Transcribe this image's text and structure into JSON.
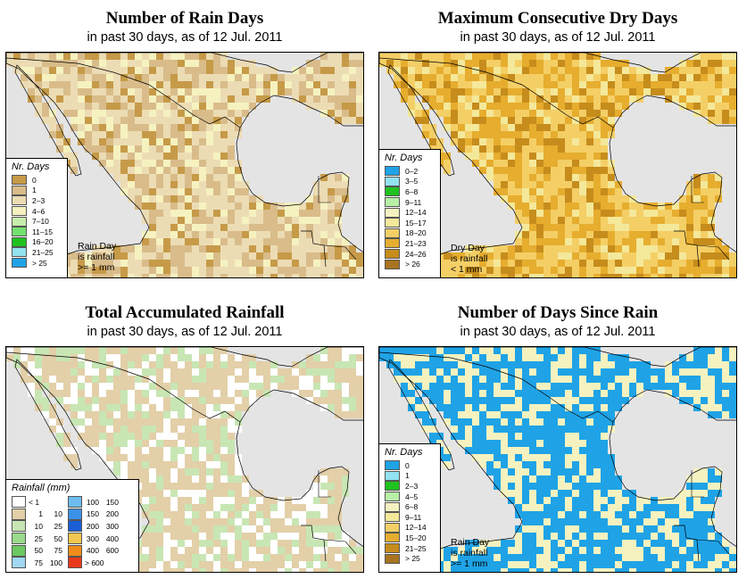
{
  "subtitle_prefix": "in past 30 days, as of",
  "date": "12 Jul. 2011",
  "panels": [
    {
      "id": "rain-days",
      "title": "Number of Rain Days",
      "subtitle": "in past 30 days, as of  12 Jul. 2011",
      "palette": {
        "0": "#c69a48",
        "1": "#d9bc8a",
        "2": "#ecdcb4",
        "3": "#f5f2c0",
        "4": "#c6eeaa",
        "5": "#74e070",
        "6": "#1fc21f",
        "7": "#93e2f0",
        "8": "#1fa3e6"
      },
      "legend": {
        "title": "Nr. Days",
        "items": [
          {
            "label": "0",
            "color": "#c69a48"
          },
          {
            "label": "1",
            "color": "#d9bc8a"
          },
          {
            "label": "2–3",
            "color": "#ecdcb4"
          },
          {
            "label": "4–6",
            "color": "#f5f2c0"
          },
          {
            "label": "7–10",
            "color": "#c6eeaa"
          },
          {
            "label": "11–15",
            "color": "#74e070"
          },
          {
            "label": "16–20",
            "color": "#1fc21f"
          },
          {
            "label": "21–25",
            "color": "#93e2f0"
          },
          {
            "label": "> 25",
            "color": "#1fa3e6"
          }
        ]
      },
      "note": [
        "Rain Day",
        "is rainfall",
        ">= 1 mm"
      ]
    },
    {
      "id": "dry-days",
      "title": "Maximum Consecutive Dry Days",
      "subtitle": "in past 30 days, as of  12 Jul. 2011",
      "palette": {
        "0": "#1fa3e6",
        "1": "#93e2f0",
        "2": "#1fc21f",
        "3": "#b8f0a8",
        "4": "#f5f2c0",
        "5": "#f4e89a",
        "6": "#f4cf66",
        "7": "#e6ad2e",
        "8": "#c68c1c",
        "9": "#a87420"
      },
      "legend": {
        "title": "Nr. Days",
        "items": [
          {
            "label": "0–2",
            "color": "#1fa3e6"
          },
          {
            "label": "3–5",
            "color": "#93e2f0"
          },
          {
            "label": "6–8",
            "color": "#1fc21f"
          },
          {
            "label": "9–11",
            "color": "#b8f0a8"
          },
          {
            "label": "12–14",
            "color": "#f5f2c0"
          },
          {
            "label": "15–17",
            "color": "#f4e89a"
          },
          {
            "label": "18–20",
            "color": "#f4cf66"
          },
          {
            "label": "21–23",
            "color": "#e6ad2e"
          },
          {
            "label": "24–26",
            "color": "#c68c1c"
          },
          {
            "label": "> 26",
            "color": "#a87420"
          }
        ]
      },
      "note": [
        "Dry Day",
        "is rainfall",
        "< 1 mm"
      ]
    },
    {
      "id": "total-rainfall",
      "title": "Total Accumulated Rainfall",
      "subtitle": "in past 30 days, as of  12 Jul. 2011",
      "palette": {
        "0": "#ffffff",
        "1": "#e3cfa8",
        "2": "#c8e6b4",
        "3": "#9ada8c",
        "4": "#6cc860",
        "5": "#9fd8f0",
        "6": "#6cbcf0",
        "7": "#3a92e8",
        "8": "#1a5ed6",
        "9": "#f2c650",
        "10": "#f08c1a",
        "11": "#e83a1a"
      },
      "legend": {
        "title": "Rainfall (mm)",
        "left": [
          {
            "a": "< 1",
            "b": "",
            "color": "#ffffff"
          },
          {
            "a": "1",
            "b": "10",
            "color": "#e3cfa8"
          },
          {
            "a": "10",
            "b": "25",
            "color": "#c8e6b4"
          },
          {
            "a": "25",
            "b": "50",
            "color": "#9ada8c"
          },
          {
            "a": "50",
            "b": "75",
            "color": "#6cc860"
          },
          {
            "a": "75",
            "b": "100",
            "color": "#9fd8f0"
          }
        ],
        "right": [
          {
            "a": "100",
            "b": "150",
            "color": "#6cbcf0"
          },
          {
            "a": "150",
            "b": "200",
            "color": "#3a92e8"
          },
          {
            "a": "200",
            "b": "300",
            "color": "#1a5ed6"
          },
          {
            "a": "300",
            "b": "400",
            "color": "#f2c650"
          },
          {
            "a": "400",
            "b": "600",
            "color": "#f08c1a"
          },
          {
            "a": "> 600",
            "b": "",
            "color": "#e83a1a"
          }
        ]
      }
    },
    {
      "id": "days-since-rain",
      "title": "Number of Days Since Rain",
      "subtitle": "in past 30 days, as of  12 Jul. 2011",
      "palette": {
        "0": "#1fa3e6",
        "1": "#93e2f0",
        "2": "#1fc21f",
        "3": "#b8f0a8",
        "4": "#f5f2c0",
        "5": "#f4e89a",
        "6": "#f4cf66",
        "7": "#e6ad2e",
        "8": "#c68c1c",
        "9": "#a87420"
      },
      "legend": {
        "title": "Nr. Days",
        "items": [
          {
            "label": "0",
            "color": "#1fa3e6"
          },
          {
            "label": "1",
            "color": "#93e2f0"
          },
          {
            "label": "2–3",
            "color": "#1fc21f"
          },
          {
            "label": "4–5",
            "color": "#b8f0a8"
          },
          {
            "label": "6–8",
            "color": "#f5f2c0"
          },
          {
            "label": "9–11",
            "color": "#f4e89a"
          },
          {
            "label": "12–14",
            "color": "#f4cf66"
          },
          {
            "label": "15–20",
            "color": "#e6ad2e"
          },
          {
            "label": "21–25",
            "color": "#c68c1c"
          },
          {
            "label": "> 25",
            "color": "#a87420"
          }
        ]
      },
      "note": [
        "Rain Day",
        "is rainfall",
        ">= 1 mm"
      ]
    }
  ]
}
